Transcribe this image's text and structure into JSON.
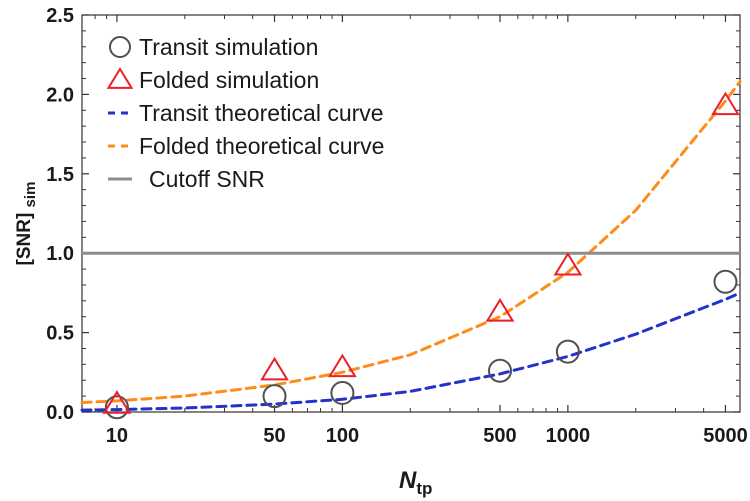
{
  "chart_data": {
    "type": "scatter",
    "x_scale": "log",
    "xlim": [
      7,
      5800
    ],
    "ylim": [
      0,
      2.5
    ],
    "x_ticks": [
      10,
      50,
      100,
      500,
      1000,
      5000
    ],
    "x_tick_labels": [
      "10",
      "50",
      "100",
      "500",
      "1000",
      "5000"
    ],
    "y_ticks": [
      0,
      0.5,
      1,
      1.5,
      2,
      2.5
    ],
    "y_tick_labels": [
      "0.0",
      "0.5",
      "1.0",
      "1.5",
      "2.0",
      "2.5"
    ],
    "xlabel": {
      "main": "N",
      "sub": "tp"
    },
    "ylabel": {
      "main": "[SNR]",
      "sub": "sim"
    },
    "legend_position": "top-left",
    "series": [
      {
        "name": "Transit simulation",
        "kind": "points",
        "marker": "circle",
        "color": "#505050",
        "x": [
          10,
          50,
          100,
          500,
          1000,
          5000
        ],
        "y": [
          0.03,
          0.1,
          0.12,
          0.26,
          0.38,
          0.82
        ]
      },
      {
        "name": "Folded simulation",
        "kind": "points",
        "marker": "triangle",
        "color": "#e8202a",
        "x": [
          10,
          50,
          100,
          500,
          1000,
          5000
        ],
        "y": [
          0.05,
          0.26,
          0.28,
          0.63,
          0.92,
          1.93
        ]
      },
      {
        "name": "Transit theoretical curve",
        "kind": "curve",
        "dash": "dashed",
        "color": "#2233cc",
        "x": [
          7,
          10,
          20,
          50,
          100,
          200,
          500,
          1000,
          2000,
          5000,
          5800
        ],
        "y": [
          0.012,
          0.015,
          0.025,
          0.05,
          0.08,
          0.13,
          0.24,
          0.35,
          0.49,
          0.71,
          0.75
        ]
      },
      {
        "name": "Folded theoretical curve",
        "kind": "curve",
        "dash": "dashed",
        "color": "#ff8c1a",
        "x": [
          7,
          10,
          20,
          50,
          100,
          200,
          500,
          1000,
          2000,
          5000,
          5800
        ],
        "y": [
          0.06,
          0.07,
          0.1,
          0.17,
          0.25,
          0.36,
          0.6,
          0.88,
          1.27,
          1.96,
          2.08
        ]
      },
      {
        "name": "Cutoff SNR",
        "kind": "hline",
        "color": "#8c8c8c",
        "y": 1.0
      }
    ]
  }
}
